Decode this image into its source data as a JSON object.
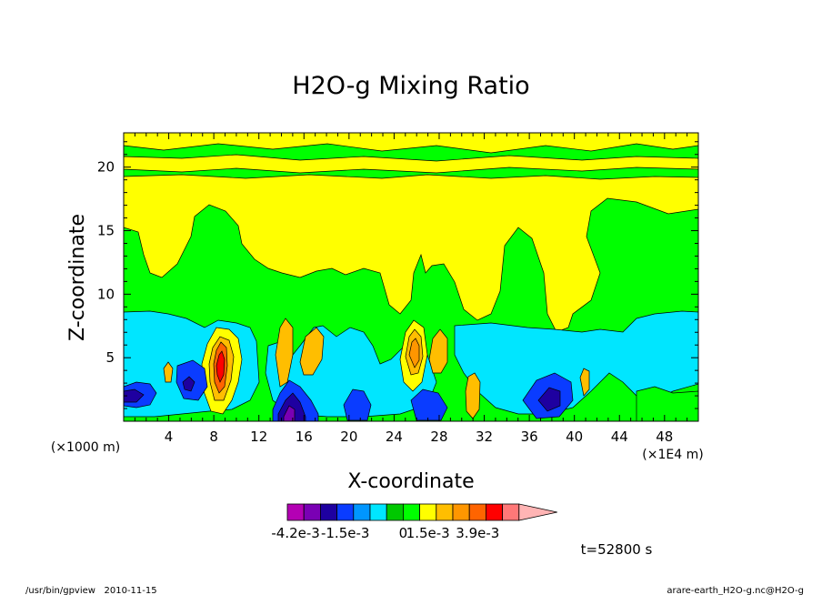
{
  "chart_data": {
    "type": "heatmap",
    "title": "H2O-g Mixing Ratio",
    "xlabel": "X-coordinate",
    "ylabel": "Z-coordinate",
    "x_unit_label": "(×1000 m)",
    "x_scale_label": "(×1E4 m)",
    "x_ticks": [
      "4",
      "8",
      "12",
      "16",
      "20",
      "24",
      "28",
      "32",
      "36",
      "40",
      "44",
      "48"
    ],
    "y_ticks": [
      "5",
      "10",
      "15",
      "20"
    ],
    "xlim": [
      0,
      51
    ],
    "ylim": [
      0,
      22.7
    ],
    "time_label": "t=52800 s",
    "colorbar": {
      "colors": [
        "#b400b4",
        "#7a00b4",
        "#1e00a0",
        "#0a3cff",
        "#0096ff",
        "#00e6ff",
        "#00c800",
        "#00ff00",
        "#ffff00",
        "#ffbe00",
        "#ff9600",
        "#ff6400",
        "#ff0000",
        "#ff7878",
        "#ffb4b4"
      ],
      "labels": [
        "-4.2e-3",
        "-1.5e-3",
        "0",
        "1.5e-3",
        "3.9e-3"
      ]
    },
    "regions": [
      {
        "level": "0",
        "color": "#00ff00",
        "note": "background"
      },
      {
        "level": "positive-low",
        "color": "#ffff00",
        "area": "upper layer z 10-19"
      },
      {
        "level": "negative-low",
        "color": "#00e6ff",
        "area": "lower layer z 0-8.5"
      },
      {
        "level": "positive-high",
        "color": "#ff6400",
        "area": "convective plumes near x 8, 26"
      },
      {
        "level": "negative-high",
        "color": "#1e00a0",
        "area": "near surface x 2-6, 14-17, 36-39"
      }
    ]
  },
  "footer": {
    "left": "/usr/bin/gpview   2010-11-15",
    "right": "arare-earth_H2O-g.nc@H2O-g"
  }
}
